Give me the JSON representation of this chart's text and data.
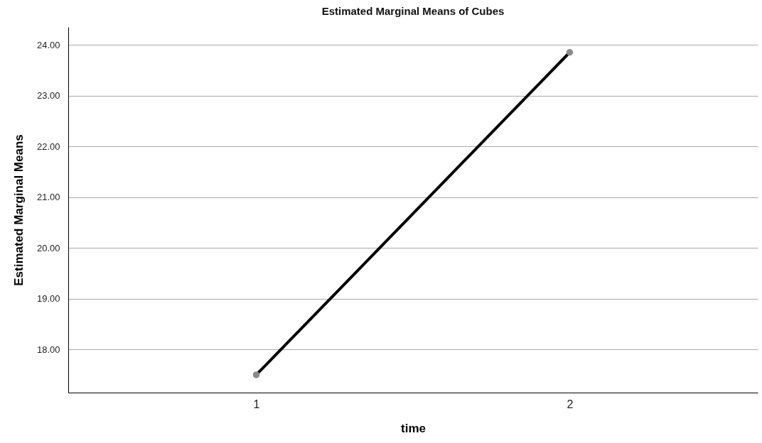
{
  "chart_data": {
    "type": "line",
    "title": "Estimated Marginal Means of Cubes",
    "xlabel": "time",
    "ylabel": "Estimated Marginal Means",
    "categories": [
      "1",
      "2"
    ],
    "series": [
      {
        "color": "#000000",
        "values": [
          17.5,
          23.85
        ]
      }
    ],
    "ylim": [
      17.15,
      24.35
    ],
    "yticks": [
      {
        "value": 18,
        "label": "18.00"
      },
      {
        "value": 19,
        "label": "19.00"
      },
      {
        "value": 20,
        "label": "20.00"
      },
      {
        "value": 21,
        "label": "21.00"
      },
      {
        "value": 22,
        "label": "22.00"
      },
      {
        "value": 23,
        "label": "23.00"
      },
      {
        "value": 24,
        "label": "24.00"
      }
    ],
    "grid": "y",
    "marker": "circle",
    "line_style": "solid"
  }
}
